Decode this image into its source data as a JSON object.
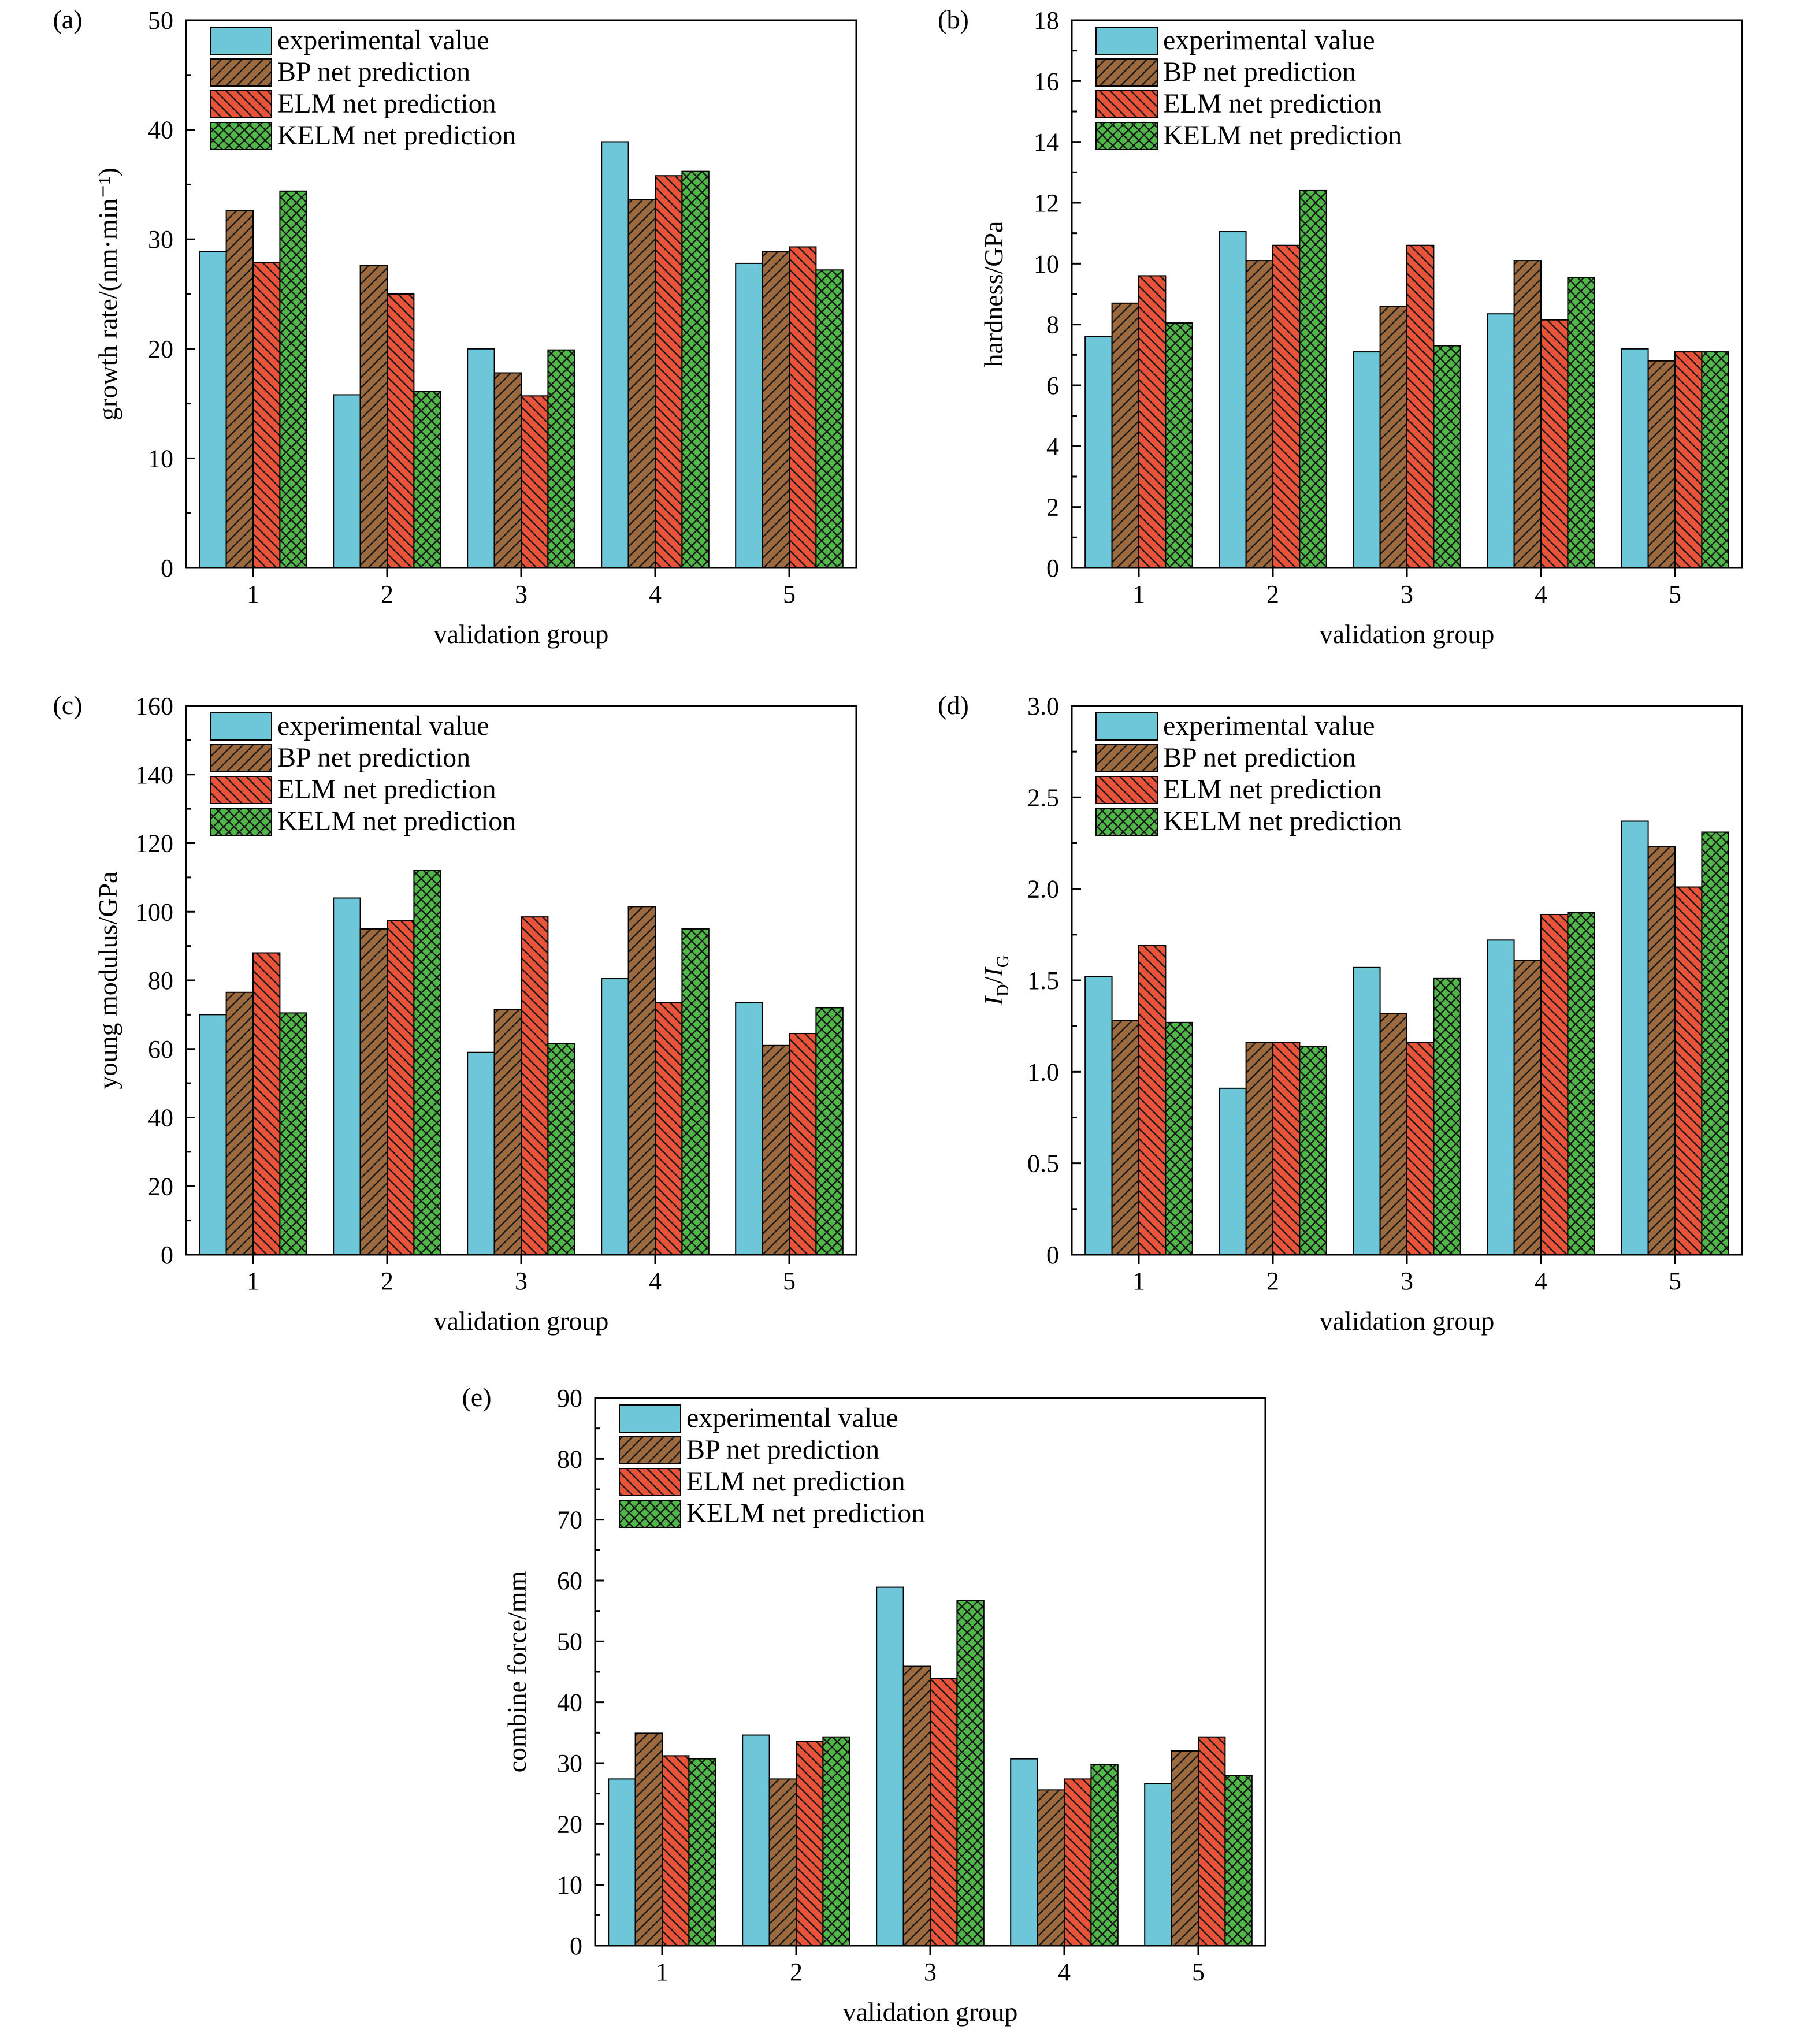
{
  "colors": {
    "experimental": "#6ec6d9",
    "bp": "#9c6a3e",
    "elm": "#e8533a",
    "kelm": "#4fb848",
    "hatch_line": "#1a1a1a",
    "axis": "#000000"
  },
  "chart_data": [
    {
      "type": "bar",
      "panel": "(a)",
      "categories": [
        "1",
        "2",
        "3",
        "4",
        "5"
      ],
      "xlabel": "validation group",
      "ylabel": "growth rate/(nm·min⁻¹)",
      "ylim": [
        0,
        50
      ],
      "yticks": [
        "0",
        "10",
        "20",
        "30",
        "40",
        "50"
      ],
      "legend_position": "top-left",
      "series": [
        {
          "name": "experimental value",
          "pattern": "solid",
          "values": [
            28.9,
            15.8,
            20.0,
            38.9,
            27.8
          ]
        },
        {
          "name": "BP net prediction",
          "pattern": "hatch",
          "values": [
            32.6,
            27.6,
            17.8,
            33.6,
            28.9
          ]
        },
        {
          "name": "ELM net prediction",
          "pattern": "backhatch",
          "values": [
            27.9,
            25.0,
            15.7,
            35.8,
            29.3
          ]
        },
        {
          "name": "KELM net prediction",
          "pattern": "cross",
          "values": [
            34.4,
            16.1,
            19.9,
            36.2,
            27.2
          ]
        }
      ]
    },
    {
      "type": "bar",
      "panel": "(b)",
      "categories": [
        "1",
        "2",
        "3",
        "4",
        "5"
      ],
      "xlabel": "validation group",
      "ylabel": "hardness/GPa",
      "ylim": [
        0,
        18
      ],
      "yticks": [
        "0",
        "2",
        "4",
        "6",
        "8",
        "10",
        "12",
        "14",
        "16",
        "18"
      ],
      "legend_position": "top-left",
      "series": [
        {
          "name": "experimental value",
          "pattern": "solid",
          "values": [
            7.6,
            11.05,
            7.1,
            8.35,
            7.2
          ]
        },
        {
          "name": "BP net prediction",
          "pattern": "hatch",
          "values": [
            8.7,
            10.1,
            8.6,
            10.1,
            6.8
          ]
        },
        {
          "name": "ELM net prediction",
          "pattern": "backhatch",
          "values": [
            9.6,
            10.6,
            10.6,
            8.15,
            7.1
          ]
        },
        {
          "name": "KELM net prediction",
          "pattern": "cross",
          "values": [
            8.05,
            12.4,
            7.3,
            9.55,
            7.1
          ]
        }
      ]
    },
    {
      "type": "bar",
      "panel": "(c)",
      "categories": [
        "1",
        "2",
        "3",
        "4",
        "5"
      ],
      "xlabel": "validation group",
      "ylabel": "young modulus/GPa",
      "ylim": [
        0,
        160
      ],
      "yticks": [
        "0",
        "20",
        "40",
        "60",
        "80",
        "100",
        "120",
        "140",
        "160"
      ],
      "legend_position": "top-left",
      "series": [
        {
          "name": "experimental value",
          "pattern": "solid",
          "values": [
            70.0,
            104.0,
            59.0,
            80.5,
            73.5
          ]
        },
        {
          "name": "BP net prediction",
          "pattern": "hatch",
          "values": [
            76.5,
            95.0,
            71.5,
            101.5,
            61.0
          ]
        },
        {
          "name": "ELM net prediction",
          "pattern": "backhatch",
          "values": [
            88.0,
            97.5,
            98.5,
            73.5,
            64.5
          ]
        },
        {
          "name": "KELM net prediction",
          "pattern": "cross",
          "values": [
            70.5,
            112.0,
            61.5,
            95.0,
            72.0
          ]
        }
      ]
    },
    {
      "type": "bar",
      "panel": "(d)",
      "categories": [
        "1",
        "2",
        "3",
        "4",
        "5"
      ],
      "xlabel": "validation group",
      "ylabel_parts": {
        "i1": "I",
        "s1": "D",
        "slash": "/",
        "i2": "I",
        "s2": "G"
      },
      "ylim": [
        0,
        3.0
      ],
      "yticks": [
        "0",
        "0.5",
        "1.0",
        "1.5",
        "2.0",
        "2.5",
        "3.0"
      ],
      "legend_position": "top-left",
      "series": [
        {
          "name": "experimental value",
          "pattern": "solid",
          "values": [
            1.52,
            0.91,
            1.57,
            1.72,
            2.37
          ]
        },
        {
          "name": "BP net prediction",
          "pattern": "hatch",
          "values": [
            1.28,
            1.16,
            1.32,
            1.61,
            2.23
          ]
        },
        {
          "name": "ELM net prediction",
          "pattern": "backhatch",
          "values": [
            1.69,
            1.16,
            1.16,
            1.86,
            2.01
          ]
        },
        {
          "name": "KELM net prediction",
          "pattern": "cross",
          "values": [
            1.27,
            1.14,
            1.51,
            1.87,
            2.31
          ]
        }
      ]
    },
    {
      "type": "bar",
      "panel": "(e)",
      "categories": [
        "1",
        "2",
        "3",
        "4",
        "5"
      ],
      "xlabel": "validation group",
      "ylabel": "combine force/mm",
      "ylim": [
        0,
        90
      ],
      "yticks": [
        "0",
        "10",
        "20",
        "30",
        "40",
        "50",
        "60",
        "70",
        "80",
        "90"
      ],
      "legend_position": "top-left",
      "series": [
        {
          "name": "experimental value",
          "pattern": "solid",
          "values": [
            27.4,
            34.6,
            58.9,
            30.7,
            26.6
          ]
        },
        {
          "name": "BP net prediction",
          "pattern": "hatch",
          "values": [
            34.9,
            27.4,
            45.9,
            25.6,
            32.0
          ]
        },
        {
          "name": "ELM net prediction",
          "pattern": "backhatch",
          "values": [
            31.2,
            33.6,
            43.9,
            27.4,
            34.3
          ]
        },
        {
          "name": "KELM net prediction",
          "pattern": "cross",
          "values": [
            30.7,
            34.3,
            56.7,
            29.8,
            28.0
          ]
        }
      ]
    }
  ]
}
